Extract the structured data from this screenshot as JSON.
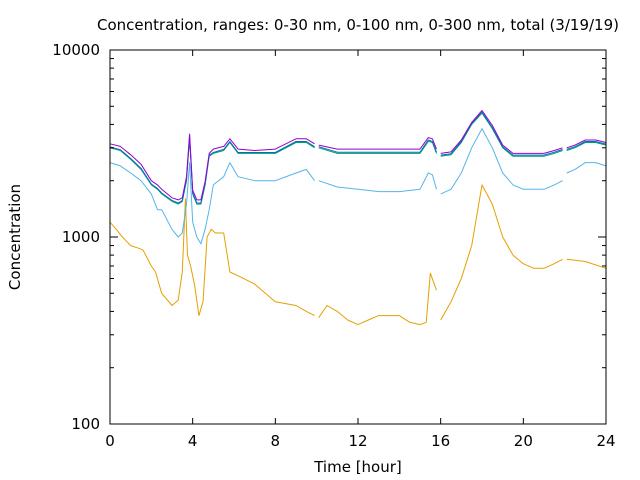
{
  "chart_data": {
    "type": "line",
    "title": "Concentration, ranges: 0-30 nm, 0-100 nm, 0-300 nm, total (3/19/19)",
    "xlabel": "Time [hour]",
    "ylabel": "Concentration",
    "xlim": [
      0,
      24
    ],
    "ylim": [
      100,
      10000
    ],
    "yscale": "log",
    "grid": false,
    "legend": "none",
    "xticks": [
      0,
      4,
      8,
      12,
      16,
      20,
      24
    ],
    "yticks": [
      100,
      1000,
      10000
    ],
    "series": [
      {
        "color": "#e69f00",
        "x": [
          0,
          0.3,
          0.6,
          1.0,
          1.4,
          1.6,
          2.0,
          2.2,
          2.5,
          3.0,
          3.3,
          3.5,
          3.65,
          3.75,
          3.9,
          4.1,
          4.3,
          4.5,
          4.7,
          4.9,
          5.1,
          5.5,
          5.8,
          6.2,
          7.0,
          8.0,
          9.0,
          9.5,
          9.9,
          null,
          10.1,
          10.5,
          11.0,
          11.5,
          12.0,
          12.5,
          13.0,
          14.0,
          14.5,
          15.0,
          15.3,
          15.5,
          15.8,
          null,
          16.0,
          16.5,
          17.0,
          17.5,
          18.0,
          18.5,
          19.0,
          19.5,
          20.0,
          20.5,
          21.0,
          21.5,
          21.9,
          null,
          22.1,
          23.0,
          24.0
        ],
        "values": [
          1200,
          1100,
          1000,
          900,
          870,
          850,
          700,
          650,
          500,
          430,
          460,
          650,
          1600,
          800,
          700,
          550,
          380,
          450,
          1000,
          1100,
          1050,
          1050,
          650,
          620,
          560,
          450,
          430,
          400,
          380,
          null,
          370,
          430,
          400,
          360,
          340,
          360,
          380,
          380,
          350,
          340,
          350,
          640,
          520,
          null,
          360,
          450,
          600,
          900,
          1900,
          1500,
          1000,
          800,
          720,
          680,
          680,
          720,
          760,
          null,
          760,
          740,
          680
        ]
      },
      {
        "color": "#56b4e9",
        "x": [
          0,
          0.5,
          1.0,
          1.5,
          2.0,
          2.3,
          2.5,
          3.0,
          3.3,
          3.5,
          3.7,
          3.85,
          4.0,
          4.2,
          4.4,
          4.6,
          4.8,
          5.0,
          5.5,
          5.8,
          6.2,
          7.0,
          8.0,
          9.0,
          9.5,
          9.9,
          null,
          10.1,
          11.0,
          12.0,
          13.0,
          14.0,
          15.0,
          15.4,
          15.6,
          15.8,
          null,
          16.0,
          16.5,
          17.0,
          17.5,
          18.0,
          18.5,
          19.0,
          19.5,
          20.0,
          21.0,
          21.5,
          21.9,
          null,
          22.1,
          22.5,
          23.0,
          23.5,
          24.0
        ],
        "values": [
          2500,
          2400,
          2200,
          2000,
          1700,
          1400,
          1400,
          1100,
          1000,
          1050,
          1500,
          2500,
          1200,
          1000,
          920,
          1100,
          1400,
          1900,
          2100,
          2500,
          2100,
          2000,
          2000,
          2200,
          2300,
          2000,
          null,
          2000,
          1850,
          1800,
          1750,
          1750,
          1800,
          2200,
          2150,
          1800,
          null,
          1700,
          1800,
          2200,
          3000,
          3800,
          3000,
          2200,
          1900,
          1800,
          1800,
          1900,
          2000,
          null,
          2200,
          2300,
          2500,
          2500,
          2400
        ]
      },
      {
        "color": "#009e73",
        "x": [
          0,
          0.5,
          1.0,
          1.5,
          2.0,
          2.3,
          2.5,
          3.0,
          3.3,
          3.5,
          3.7,
          3.85,
          4.0,
          4.2,
          4.4,
          4.6,
          4.8,
          5.0,
          5.5,
          5.8,
          6.2,
          7.0,
          8.0,
          9.0,
          9.5,
          9.9,
          null,
          10.1,
          11.0,
          12.0,
          13.0,
          14.0,
          15.0,
          15.4,
          15.6,
          15.8,
          null,
          16.0,
          16.5,
          17.0,
          17.5,
          18.0,
          18.5,
          19.0,
          19.5,
          20.0,
          21.0,
          21.5,
          21.9,
          null,
          22.1,
          22.5,
          23.0,
          23.5,
          24.0
        ],
        "values": [
          3000,
          2900,
          2600,
          2300,
          1900,
          1800,
          1700,
          1550,
          1500,
          1550,
          2000,
          3400,
          1700,
          1500,
          1500,
          1900,
          2700,
          2800,
          2900,
          3200,
          2800,
          2800,
          2800,
          3200,
          3200,
          3000,
          null,
          3000,
          2800,
          2800,
          2800,
          2800,
          2800,
          3250,
          3200,
          2800,
          null,
          2700,
          2750,
          3200,
          4000,
          4600,
          3800,
          3000,
          2700,
          2700,
          2700,
          2800,
          2900,
          null,
          2900,
          3000,
          3200,
          3200,
          3100
        ]
      },
      {
        "color": "#0072b2",
        "x": [
          0,
          0.5,
          1.0,
          1.5,
          2.0,
          2.3,
          2.5,
          3.0,
          3.3,
          3.5,
          3.7,
          3.85,
          4.0,
          4.2,
          4.4,
          4.6,
          4.8,
          5.0,
          5.5,
          5.8,
          6.2,
          7.0,
          8.0,
          9.0,
          9.5,
          9.9,
          null,
          10.1,
          11.0,
          12.0,
          13.0,
          14.0,
          15.0,
          15.4,
          15.6,
          15.8,
          null,
          16.0,
          16.5,
          17.0,
          17.5,
          18.0,
          18.5,
          19.0,
          19.5,
          20.0,
          21.0,
          21.5,
          21.9,
          null,
          22.1,
          22.5,
          23.0,
          23.5,
          24.0
        ],
        "values": [
          3030,
          2930,
          2630,
          2330,
          1920,
          1820,
          1720,
          1570,
          1520,
          1570,
          2030,
          3450,
          1720,
          1520,
          1520,
          1920,
          2740,
          2830,
          2940,
          3240,
          2830,
          2830,
          2830,
          3240,
          3240,
          3040,
          null,
          3040,
          2840,
          2840,
          2840,
          2840,
          2840,
          3300,
          3240,
          2840,
          null,
          2740,
          2790,
          3240,
          4050,
          4650,
          3850,
          3040,
          2740,
          2740,
          2740,
          2840,
          2940,
          null,
          2940,
          3040,
          3240,
          3240,
          3140
        ]
      },
      {
        "color": "#9400d3",
        "x": [
          0,
          0.5,
          1.0,
          1.5,
          2.0,
          2.3,
          2.5,
          3.0,
          3.3,
          3.5,
          3.7,
          3.85,
          4.0,
          4.2,
          4.4,
          4.6,
          4.8,
          5.0,
          5.5,
          5.8,
          6.2,
          7.0,
          8.0,
          9.0,
          9.5,
          9.9,
          null,
          10.1,
          11.0,
          12.0,
          13.0,
          14.0,
          15.0,
          15.4,
          15.6,
          15.8,
          null,
          16.0,
          16.5,
          17.0,
          17.5,
          18.0,
          18.5,
          19.0,
          19.5,
          20.0,
          21.0,
          21.5,
          21.9,
          null,
          22.1,
          22.5,
          23.0,
          23.5,
          24.0
        ],
        "values": [
          3150,
          3050,
          2750,
          2450,
          2000,
          1900,
          1800,
          1620,
          1580,
          1620,
          2100,
          3550,
          1780,
          1580,
          1580,
          1980,
          2800,
          2950,
          3050,
          3350,
          2950,
          2900,
          2950,
          3350,
          3350,
          3150,
          null,
          3100,
          2950,
          2950,
          2950,
          2950,
          2950,
          3400,
          3350,
          2950,
          null,
          2800,
          2850,
          3300,
          4100,
          4750,
          3950,
          3100,
          2800,
          2800,
          2800,
          2900,
          3000,
          null,
          3000,
          3100,
          3300,
          3300,
          3200
        ]
      }
    ]
  }
}
